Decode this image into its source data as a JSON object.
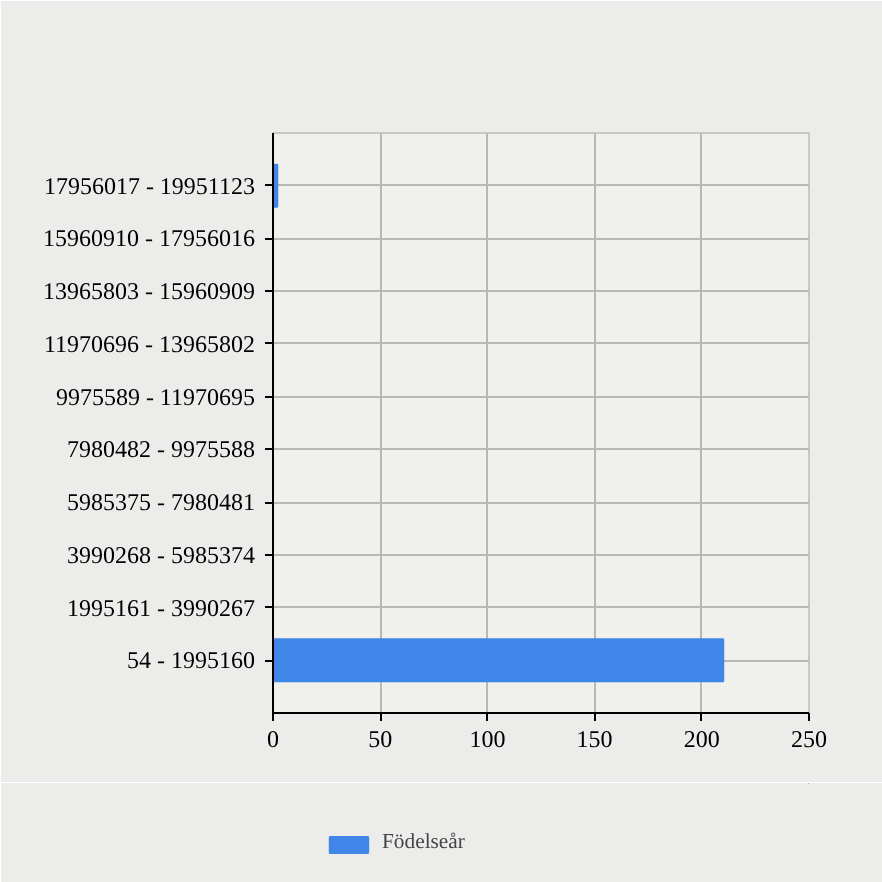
{
  "chart_data": {
    "type": "bar",
    "orientation": "horizontal",
    "categories": [
      "17956017 - 19951123",
      "15960910 - 17956016",
      "13965803 - 15960909",
      "11970696 - 13965802",
      "9975589 - 11970695",
      "7980482 - 9975588",
      "5985375 - 7980481",
      "3990268 - 5985374",
      "1995161 - 3990267",
      "54 - 1995160"
    ],
    "series": [
      {
        "name": "Födelseår",
        "color": "#3f86e8",
        "values": [
          2,
          0,
          0,
          0,
          0,
          0,
          0,
          0,
          0,
          210
        ]
      }
    ],
    "xlim": [
      0,
      250
    ],
    "xticks": [
      0,
      50,
      100,
      150,
      200,
      250
    ],
    "grid": true,
    "legend": "bottom left"
  }
}
